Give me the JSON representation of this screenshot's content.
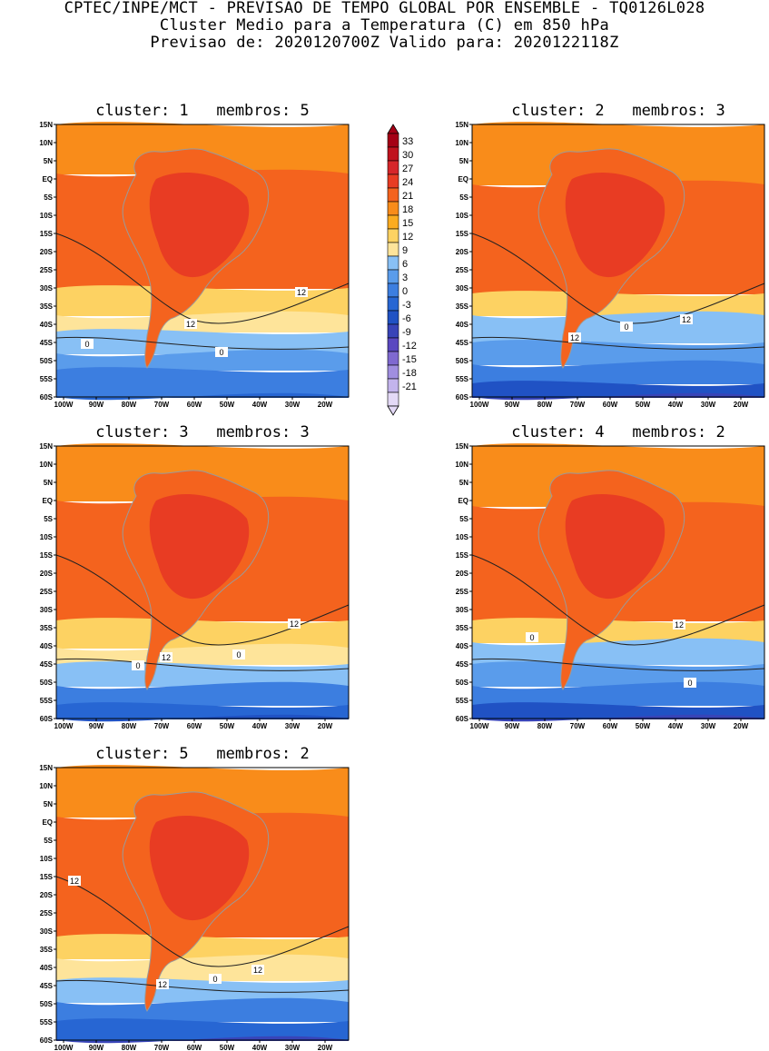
{
  "header": {
    "line1": "CPTEC/INPE/MCT - PREVISAO DE TEMPO GLOBAL POR ENSEMBLE - TQ0126L028",
    "line2": "Cluster Medio para a Temperatura (C) em 850 hPa",
    "line3": "Previsao de: 2020120700Z   Valido para: 2020122118Z"
  },
  "lat_ticks": [
    "15N",
    "10N",
    "5N",
    "EQ",
    "5S",
    "10S",
    "15S",
    "20S",
    "25S",
    "30S",
    "35S",
    "40S",
    "45S",
    "50S",
    "55S",
    "60S"
  ],
  "lon_ticks": [
    "100W",
    "90W",
    "80W",
    "70W",
    "60W",
    "50W",
    "40W",
    "30W",
    "20W"
  ],
  "colorbar": {
    "labels": [
      "33",
      "30",
      "27",
      "24",
      "21",
      "18",
      "15",
      "12",
      "9",
      "6",
      "3",
      "0",
      "-3",
      "-6",
      "-9",
      "-12",
      "-15",
      "-18",
      "-21"
    ],
    "colors": [
      "#a50015",
      "#c0121d",
      "#d6262a",
      "#e83c23",
      "#f4631e",
      "#f98c1a",
      "#fbac20",
      "#fdd262",
      "#fee49a",
      "#88c0f5",
      "#5a9ceb",
      "#3c7ee0",
      "#2766d3",
      "#2052c4",
      "#3844b8",
      "#5a48c0",
      "#7f69d0",
      "#a08ee0",
      "#c3b4ec",
      "#e3d9f6"
    ]
  },
  "panels": [
    {
      "title": "cluster: 1   membros: 5",
      "labels": [
        "12",
        "12",
        "0",
        "0"
      ]
    },
    {
      "title": "cluster: 2   membros: 3",
      "labels": [
        "12",
        "12",
        "0"
      ]
    },
    {
      "title": "cluster: 3   membros: 3",
      "labels": [
        "12",
        "12",
        "0",
        "0"
      ]
    },
    {
      "title": "cluster: 4   membros: 2",
      "labels": [
        "12",
        "0",
        "0"
      ]
    },
    {
      "title": "cluster: 5   membros: 2",
      "labels": [
        "12",
        "12",
        "12",
        "0"
      ]
    }
  ]
}
